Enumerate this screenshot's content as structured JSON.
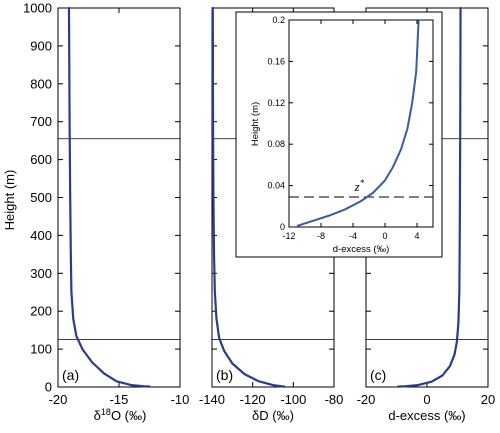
{
  "chart_data": {
    "type": "line",
    "ylabel": "Height (m)",
    "ylim": [
      0,
      1000
    ],
    "yticks": [
      "0",
      "100",
      "200",
      "300",
      "400",
      "500",
      "600",
      "700",
      "800",
      "900",
      "1000"
    ],
    "reference_heights_m": [
      125,
      655
    ],
    "line_color": "#2b3990",
    "panels": [
      {
        "panel_label": "(a)",
        "xlabel": "δ18O (‰)",
        "xlabel_main": "δ",
        "xlabel_sup": "18",
        "xlabel_rest": "O (‰)",
        "xlim": [
          -20,
          -10
        ],
        "xticks": [
          {
            "v": -20,
            "label": "-20"
          },
          {
            "v": -15,
            "label": "-15"
          },
          {
            "v": -10,
            "label": "-10"
          }
        ],
        "series": [
          {
            "x": [
              -19.1,
              -19.05,
              -19.0,
              -18.95,
              -18.9,
              -18.75,
              -18.5,
              -18.0,
              -17.2,
              -16.2,
              -15.2,
              -14.0,
              -13.0,
              -12.5
            ],
            "y": [
              1000,
              700,
              500,
              350,
              250,
              180,
              135,
              100,
              65,
              35,
              15,
              5,
              2,
              1
            ]
          }
        ]
      },
      {
        "panel_label": "(b)",
        "xlabel": "δD (‰)",
        "xlim": [
          -140,
          -80
        ],
        "xticks": [
          {
            "v": -140,
            "label": "-140"
          },
          {
            "v": -120,
            "label": "-120"
          },
          {
            "v": -100,
            "label": "-100"
          },
          {
            "v": -80,
            "label": "-80"
          }
        ],
        "series": [
          {
            "x": [
              -139.6,
              -139.5,
              -139.3,
              -139.0,
              -138.6,
              -137.8,
              -136.5,
              -134.0,
              -130.0,
              -124.0,
              -117.0,
              -110.0,
              -106.0,
              -104.5
            ],
            "y": [
              1000,
              700,
              500,
              350,
              250,
              180,
              130,
              95,
              62,
              34,
              15,
              5,
              2,
              1
            ]
          }
        ]
      },
      {
        "panel_label": "(c)",
        "xlabel": "d-excess (‰)",
        "xlim": [
          -20,
          20
        ],
        "xticks": [
          {
            "v": -20,
            "label": "-20"
          },
          {
            "v": 0,
            "label": "0"
          },
          {
            "v": 20,
            "label": "20"
          }
        ],
        "series": [
          {
            "x": [
              11.0,
              10.9,
              10.8,
              10.7,
              10.6,
              10.3,
              9.8,
              9.0,
              7.5,
              5.0,
              1.5,
              -3.0,
              -7.0,
              -9.5
            ],
            "y": [
              1000,
              700,
              500,
              350,
              250,
              170,
              120,
              85,
              55,
              30,
              14,
              5,
              2,
              1
            ]
          }
        ]
      }
    ],
    "inset": {
      "ylabel": "Height (m)",
      "xlabel": "d-excess (‰)",
      "xlim": [
        -12,
        6
      ],
      "ylim": [
        0,
        0.2
      ],
      "xticks": [
        {
          "v": -12,
          "label": "-12"
        },
        {
          "v": -8,
          "label": "-8"
        },
        {
          "v": -4,
          "label": "-4"
        },
        {
          "v": 0,
          "label": "0"
        },
        {
          "v": 4,
          "label": "4"
        }
      ],
      "yticks": [
        {
          "v": 0,
          "label": "0"
        },
        {
          "v": 0.04,
          "label": "0.04"
        },
        {
          "v": 0.08,
          "label": "0.08"
        },
        {
          "v": 0.12,
          "label": "0.12"
        },
        {
          "v": 0.16,
          "label": "0.16"
        },
        {
          "v": 0.2,
          "label": "0.2"
        }
      ],
      "annotation": "z*",
      "annotation_main": "z",
      "annotation_sup": "*",
      "z_star_height": 0.029,
      "series": [
        {
          "x": [
            -11.0,
            -9.0,
            -7.0,
            -5.0,
            -3.0,
            -1.5,
            0.0,
            1.0,
            2.0,
            2.8,
            3.4,
            3.9,
            4.2
          ],
          "y": [
            0.001,
            0.006,
            0.011,
            0.017,
            0.025,
            0.033,
            0.045,
            0.058,
            0.075,
            0.095,
            0.12,
            0.15,
            0.2
          ]
        }
      ]
    }
  }
}
